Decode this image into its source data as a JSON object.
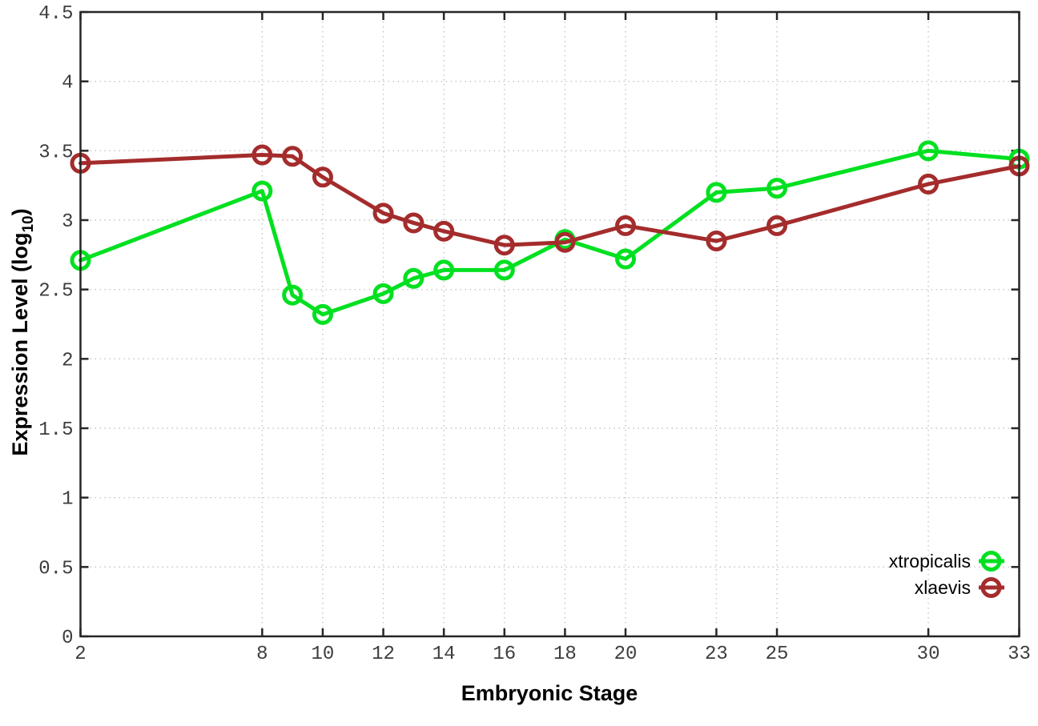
{
  "chart_data": {
    "type": "line",
    "xlabel": "Embryonic Stage",
    "ylabel_base": "Expression Level (log",
    "ylabel_sub": "10",
    "ylabel_close": ")",
    "x": [
      2,
      8,
      9,
      10,
      12,
      13,
      14,
      16,
      18,
      20,
      23,
      25,
      30,
      33
    ],
    "xtick_labels": [
      2,
      8,
      10,
      12,
      14,
      16,
      18,
      20,
      23,
      25,
      30,
      33
    ],
    "ytick_labels": [
      "0",
      "0.5",
      "1",
      "1.5",
      "2",
      "2.5",
      "3",
      "3.5",
      "4",
      "4.5"
    ],
    "ytick_values": [
      0,
      0.5,
      1,
      1.5,
      2,
      2.5,
      3,
      3.5,
      4,
      4.5
    ],
    "xlim": [
      2,
      33
    ],
    "ylim": [
      0,
      4.5
    ],
    "grid": true,
    "legend_position": "bottom-right",
    "series": [
      {
        "name": "xtropicalis",
        "color": "#00e020",
        "values": [
          2.71,
          3.21,
          2.46,
          2.32,
          2.47,
          2.58,
          2.64,
          2.64,
          2.86,
          2.72,
          3.2,
          3.23,
          3.5,
          3.44
        ]
      },
      {
        "name": "xlaevis",
        "color": "#a42c2c",
        "values": [
          3.41,
          3.47,
          3.46,
          3.31,
          3.05,
          2.98,
          2.92,
          2.82,
          2.84,
          2.96,
          2.85,
          2.96,
          3.26,
          3.39
        ]
      }
    ],
    "style": {
      "grid_color": "#c4c4c4",
      "border_color": "#262626",
      "tick_text_color": "#3d3d3d",
      "background": "#ffffff"
    }
  }
}
